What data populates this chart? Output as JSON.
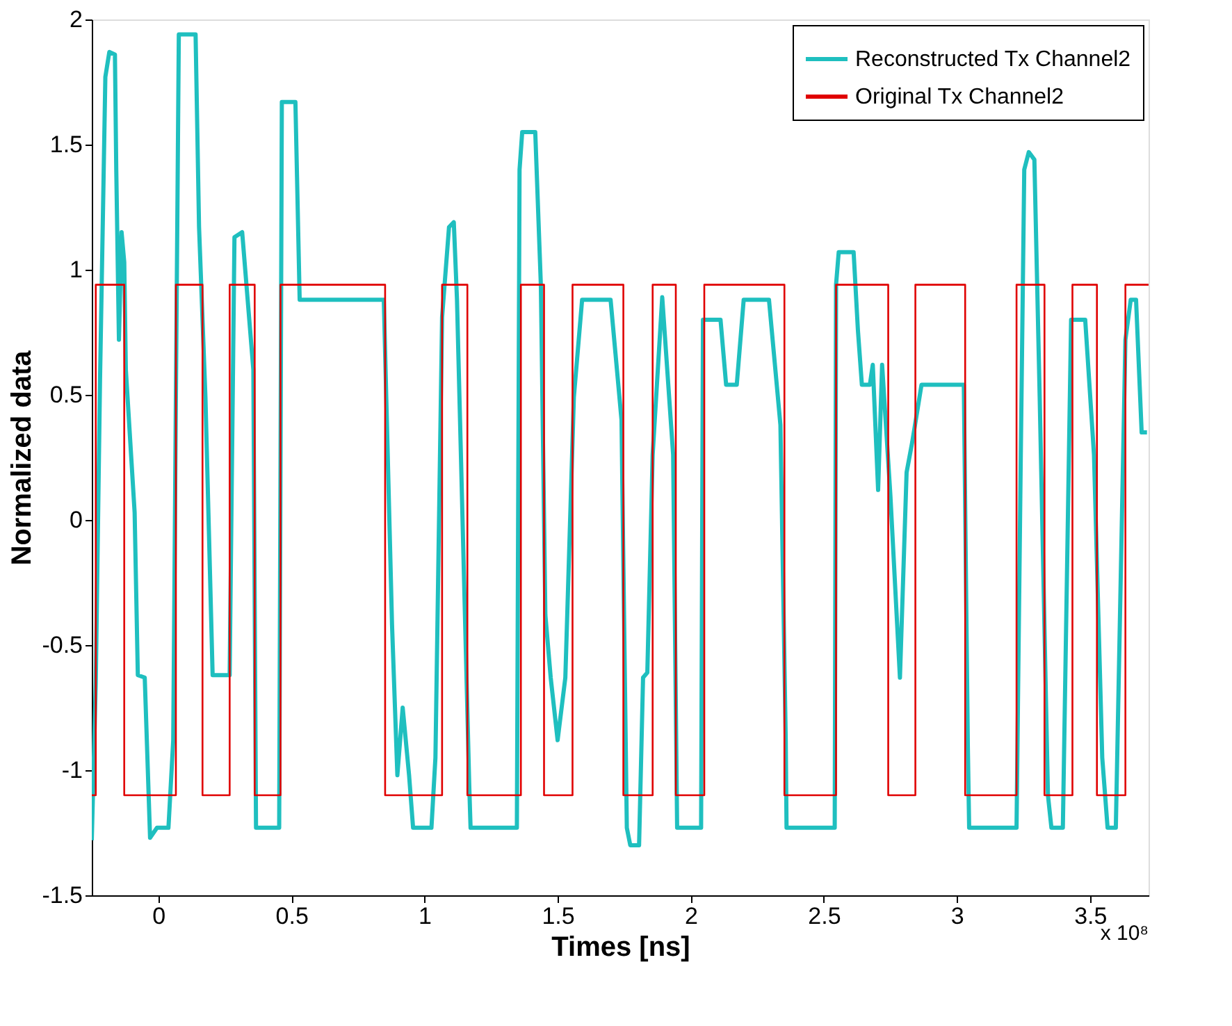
{
  "chart_data": {
    "type": "line",
    "xlabel": "Times [ns]",
    "ylabel": "Normalized data",
    "xlim": [
      -0.25,
      3.72
    ],
    "xticks": [
      0,
      0.5,
      1,
      1.5,
      2,
      2.5,
      3,
      3.5
    ],
    "ylim": [
      -1.5,
      2
    ],
    "yticks": [
      -1.5,
      -1,
      -0.5,
      0,
      0.5,
      1,
      1.5,
      2
    ],
    "grid": false,
    "legend": "top right",
    "annotations": [
      "x 10⁸"
    ],
    "series": [
      {
        "name": "Reconstructed Tx Channel2",
        "color": "#1fbfbf",
        "x": [
          -0.25,
          -0.235,
          -0.219,
          -0.199,
          -0.184,
          -0.163,
          -0.158,
          -0.148,
          -0.138,
          -0.128,
          -0.122,
          -0.089,
          -0.077,
          -0.051,
          -0.031,
          -0.005,
          0.038,
          0.056,
          0.066,
          0.077,
          0.14,
          0.153,
          0.177,
          0.204,
          0.268,
          0.286,
          0.315,
          0.357,
          0.367,
          0.454,
          0.464,
          0.515,
          0.531,
          0.847,
          0.878,
          0.898,
          0.918,
          0.942,
          0.957,
          1.026,
          1.041,
          1.066,
          1.092,
          1.11,
          1.122,
          1.168,
          1.173,
          1.347,
          1.357,
          1.367,
          1.416,
          1.437,
          1.454,
          1.474,
          1.5,
          1.529,
          1.561,
          1.592,
          1.699,
          1.74,
          1.76,
          1.773,
          1.806,
          1.821,
          1.837,
          1.857,
          1.893,
          1.934,
          1.949,
          2.039,
          2.046,
          2.112,
          2.133,
          2.173,
          2.199,
          2.294,
          2.337,
          2.357,
          2.36,
          2.541,
          2.546,
          2.556,
          2.612,
          2.628,
          2.643,
          2.673,
          2.684,
          2.704,
          2.719,
          2.75,
          2.786,
          2.811,
          2.832,
          2.867,
          3.026,
          3.041,
          3.046,
          3.224,
          3.24,
          3.253,
          3.27,
          3.291,
          3.311,
          3.342,
          3.355,
          3.398,
          3.429,
          3.482,
          3.515,
          3.546,
          3.566,
          3.597,
          3.633,
          3.653,
          3.673,
          3.694,
          3.714
        ],
        "values": [
          -1.28,
          -0.65,
          0.56,
          1.77,
          1.87,
          1.86,
          1.4,
          0.72,
          1.15,
          1.03,
          0.6,
          0.03,
          -0.62,
          -0.63,
          -1.27,
          -1.23,
          -1.23,
          -0.88,
          0.49,
          1.94,
          1.94,
          1.17,
          0.49,
          -0.62,
          -0.62,
          1.13,
          1.15,
          0.6,
          -1.23,
          -1.23,
          1.67,
          1.67,
          0.88,
          0.88,
          -0.42,
          -1.02,
          -0.75,
          -1.02,
          -1.23,
          -1.23,
          -0.95,
          0.81,
          1.17,
          1.19,
          0.88,
          -1.06,
          -1.23,
          -1.23,
          1.4,
          1.55,
          1.55,
          0.94,
          -0.38,
          -0.63,
          -0.88,
          -0.63,
          0.49,
          0.88,
          0.88,
          0.4,
          -1.23,
          -1.3,
          -1.3,
          -0.63,
          -0.61,
          0.26,
          0.89,
          0.26,
          -1.23,
          -1.23,
          0.8,
          0.8,
          0.54,
          0.54,
          0.88,
          0.88,
          0.38,
          -0.88,
          -1.23,
          -1.23,
          0.94,
          1.07,
          1.07,
          0.76,
          0.54,
          0.54,
          0.62,
          0.12,
          0.62,
          0.1,
          -0.63,
          0.19,
          0.31,
          0.54,
          0.54,
          -0.9,
          -1.23,
          -1.23,
          0.26,
          1.4,
          1.47,
          1.44,
          0.49,
          -1.1,
          -1.23,
          -1.23,
          0.8,
          0.8,
          0.26,
          -0.95,
          -1.23,
          -1.23,
          0.72,
          0.88,
          0.88,
          0.35,
          0.35
        ]
      },
      {
        "name": "Original Tx Channel2",
        "color": "#e00000",
        "type": "step",
        "x": [
          -0.25,
          -0.235,
          -0.128,
          0.066,
          0.166,
          0.268,
          0.362,
          0.459,
          0.852,
          1.066,
          1.161,
          1.362,
          1.449,
          1.556,
          1.747,
          1.857,
          1.944,
          2.051,
          2.352,
          2.546,
          2.742,
          2.844,
          3.031,
          3.224,
          3.329,
          3.434,
          3.526,
          3.633,
          3.72
        ],
        "values": [
          -1.1,
          0.94,
          -1.1,
          0.94,
          -1.1,
          0.94,
          -1.1,
          0.94,
          -1.1,
          0.94,
          -1.1,
          0.94,
          -1.1,
          0.94,
          -1.1,
          0.94,
          -1.1,
          0.94,
          -1.1,
          0.94,
          -1.1,
          0.94,
          -1.1,
          0.94,
          -1.1,
          0.94,
          -1.1,
          0.94,
          0.94
        ]
      }
    ]
  }
}
